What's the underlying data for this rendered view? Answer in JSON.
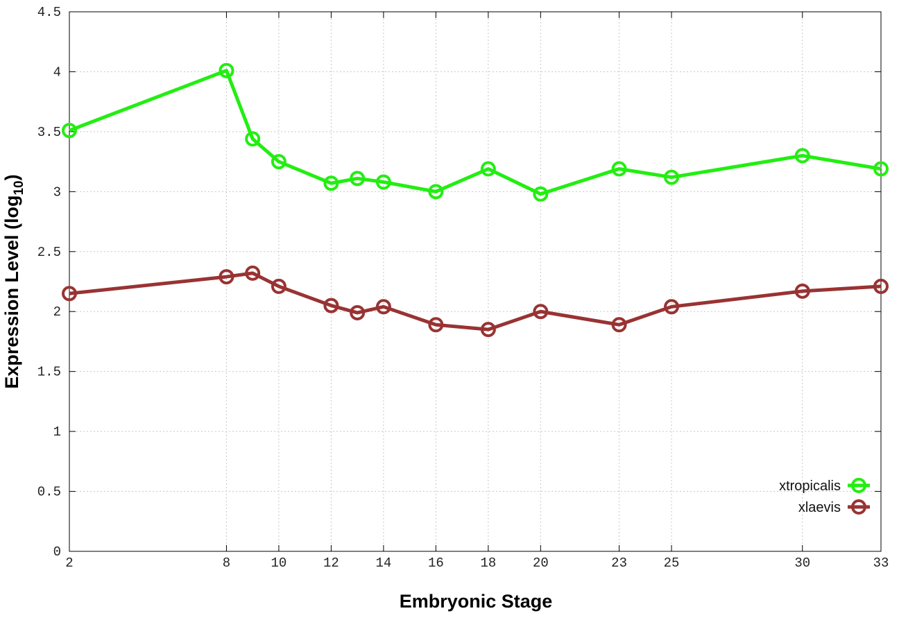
{
  "chart_data": {
    "type": "line",
    "xlabel": "Embryonic Stage",
    "ylabel": {
      "text": "Expression Level (log",
      "subscript": "10",
      "suffix": ")"
    },
    "x": [
      2,
      8,
      9,
      10,
      12,
      13,
      14,
      16,
      18,
      20,
      23,
      25,
      30,
      33
    ],
    "series": [
      {
        "name": "xtropicalis",
        "color": "#22ee11",
        "values": [
          3.51,
          4.01,
          3.44,
          3.25,
          3.07,
          3.11,
          3.08,
          3.0,
          3.19,
          2.98,
          3.19,
          3.12,
          3.3,
          3.19
        ]
      },
      {
        "name": "xlaevis",
        "color": "#993333",
        "values": [
          2.15,
          2.29,
          2.32,
          2.21,
          2.05,
          1.99,
          2.04,
          1.89,
          1.85,
          2.0,
          1.89,
          2.04,
          2.17,
          2.21
        ]
      }
    ],
    "xlim": [
      2,
      33
    ],
    "xticks": [
      2,
      8,
      10,
      12,
      14,
      16,
      18,
      20,
      23,
      25,
      30,
      33
    ],
    "ylim": [
      0,
      4.5
    ],
    "yticks": [
      0,
      0.5,
      1,
      1.5,
      2,
      2.5,
      3,
      3.5,
      4,
      4.5
    ],
    "grid": true,
    "legend": "bottom-right"
  }
}
